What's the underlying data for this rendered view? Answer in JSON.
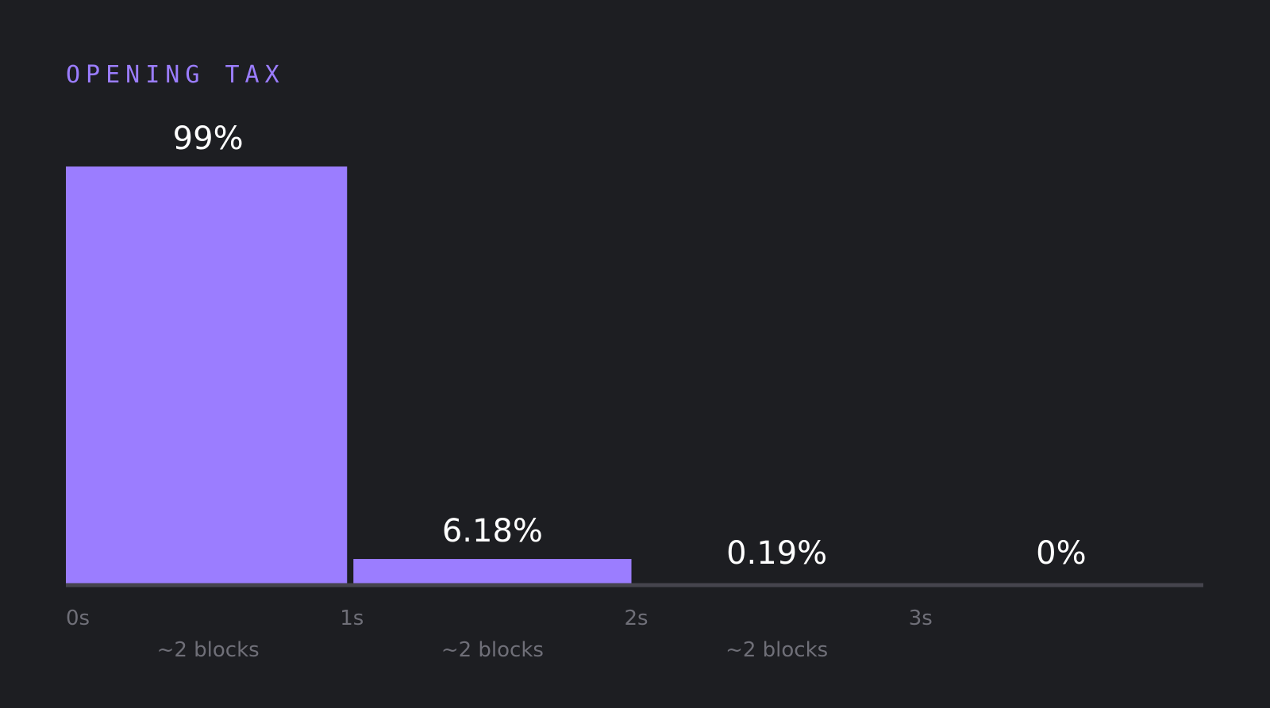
{
  "colors": {
    "background": "#1d1e22",
    "bar": "#9b7dff",
    "axis": "#45444d",
    "title": "#9b7dff",
    "value_label": "#ffffff",
    "tick_label": "#6f6f78"
  },
  "chart_data": {
    "type": "bar",
    "title": "OPENING TAX",
    "xlabel": "",
    "ylabel": "",
    "ylim": [
      0,
      99
    ],
    "grid": false,
    "legend": "none",
    "categories": [
      "0s–1s",
      "1s–2s",
      "2s–3s",
      "3s–4s"
    ],
    "values": [
      99,
      6.18,
      0.19,
      0
    ],
    "value_labels": [
      "99%",
      "6.18%",
      "0.19%",
      "0%"
    ],
    "sub_labels": [
      "~2 blocks",
      "~2 blocks",
      "~2 blocks",
      ""
    ],
    "x_ticks": [
      "0s",
      "1s",
      "2s",
      "3s"
    ]
  }
}
